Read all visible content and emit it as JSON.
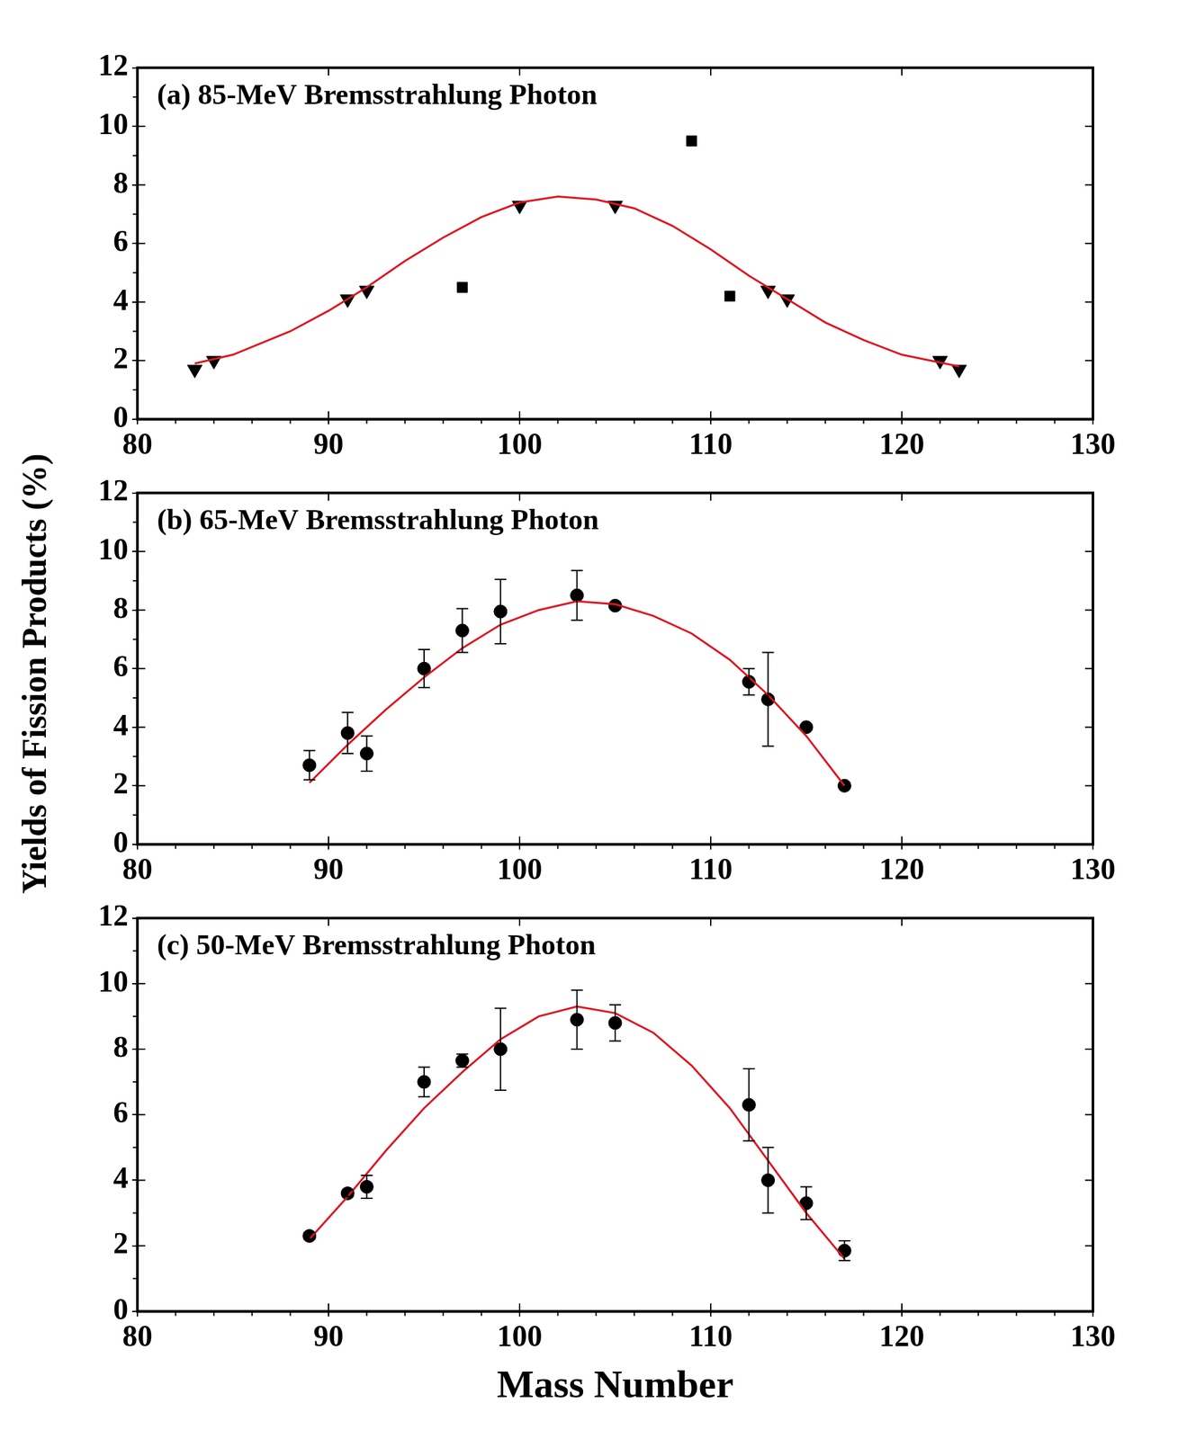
{
  "ylabel": "Yields of Fission Products (%)",
  "chart_data": [
    {
      "type": "scatter",
      "title": "(a) 85-MeV Bremsstrahlung Photon",
      "xlim": [
        80,
        130
      ],
      "xticks": [
        80,
        90,
        100,
        110,
        120,
        130
      ],
      "ylim": [
        0,
        12
      ],
      "yticks": [
        0,
        2,
        4,
        6,
        8,
        10,
        12
      ],
      "grid": false,
      "series": [
        {
          "type": "scatter",
          "marker": "triangle_down",
          "color": "#000000",
          "x": [
            83,
            84,
            91,
            92,
            100,
            105,
            113,
            114,
            122,
            123
          ],
          "values": [
            1.7,
            2.0,
            4.1,
            4.4,
            7.3,
            7.3,
            4.4,
            4.1,
            2.0,
            1.7
          ]
        },
        {
          "type": "scatter",
          "marker": "square",
          "color": "#000000",
          "x": [
            97,
            109,
            111
          ],
          "values": [
            4.5,
            9.5,
            4.2
          ]
        },
        {
          "type": "line",
          "marker": "none",
          "line_style": "solid",
          "color": "#e0141e",
          "x": [
            83,
            85,
            88,
            90,
            92,
            94,
            96,
            98,
            100,
            102,
            104,
            106,
            108,
            110,
            112,
            114,
            116,
            118,
            120,
            123
          ],
          "values": [
            1.9,
            2.2,
            3.0,
            3.7,
            4.5,
            5.4,
            6.2,
            6.9,
            7.4,
            7.6,
            7.5,
            7.2,
            6.6,
            5.8,
            4.9,
            4.1,
            3.3,
            2.7,
            2.2,
            1.8
          ]
        }
      ]
    },
    {
      "type": "scatter",
      "title": "(b) 65-MeV Bremsstrahlung Photon",
      "xlim": [
        80,
        130
      ],
      "xticks": [
        80,
        90,
        100,
        110,
        120,
        130
      ],
      "ylim": [
        0,
        12
      ],
      "yticks": [
        0,
        2,
        4,
        6,
        8,
        10,
        12
      ],
      "grid": false,
      "series": [
        {
          "type": "scatter",
          "marker": "circle",
          "color": "#000000",
          "x": [
            89,
            91,
            92,
            95,
            97,
            99,
            103,
            105,
            112,
            113,
            115,
            117
          ],
          "values": [
            2.7,
            3.8,
            3.1,
            6.0,
            7.3,
            7.95,
            8.5,
            8.15,
            5.55,
            4.95,
            4.0,
            2.0
          ],
          "errors": [
            0.5,
            0.7,
            0.6,
            0.65,
            0.75,
            1.1,
            0.85,
            null,
            0.45,
            1.6,
            null,
            null
          ]
        },
        {
          "type": "line",
          "marker": "none",
          "line_style": "solid",
          "color": "#e0141e",
          "x": [
            89,
            91,
            93,
            95,
            97,
            99,
            101,
            103,
            105,
            107,
            109,
            111,
            113,
            115,
            117
          ],
          "values": [
            2.1,
            3.4,
            4.6,
            5.7,
            6.7,
            7.5,
            8.0,
            8.3,
            8.2,
            7.8,
            7.2,
            6.3,
            5.1,
            3.7,
            2.0
          ]
        }
      ]
    },
    {
      "type": "scatter",
      "title": "(c) 50-MeV Bremsstrahlung Photon",
      "xlabel": "Mass Number",
      "xlim": [
        80,
        130
      ],
      "xticks": [
        80,
        90,
        100,
        110,
        120,
        130
      ],
      "ylim": [
        0,
        12
      ],
      "yticks": [
        0,
        2,
        4,
        6,
        8,
        10,
        12
      ],
      "grid": false,
      "series": [
        {
          "type": "scatter",
          "marker": "circle",
          "color": "#000000",
          "x": [
            89,
            91,
            92,
            95,
            97,
            99,
            103,
            105,
            112,
            113,
            115,
            117
          ],
          "values": [
            2.3,
            3.6,
            3.8,
            7.0,
            7.65,
            8.0,
            8.9,
            8.8,
            6.3,
            4.0,
            3.3,
            1.85
          ],
          "errors": [
            0.1,
            0.1,
            0.35,
            0.45,
            0.2,
            1.25,
            0.9,
            0.55,
            1.1,
            1.0,
            0.5,
            0.3
          ]
        },
        {
          "type": "line",
          "marker": "none",
          "line_style": "solid",
          "color": "#e0141e",
          "x": [
            89,
            91,
            93,
            95,
            97,
            99,
            101,
            103,
            105,
            107,
            109,
            111,
            113,
            115,
            117
          ],
          "values": [
            2.2,
            3.5,
            4.9,
            6.2,
            7.3,
            8.3,
            9.0,
            9.3,
            9.1,
            8.5,
            7.5,
            6.2,
            4.6,
            3.0,
            1.6
          ]
        }
      ]
    }
  ]
}
